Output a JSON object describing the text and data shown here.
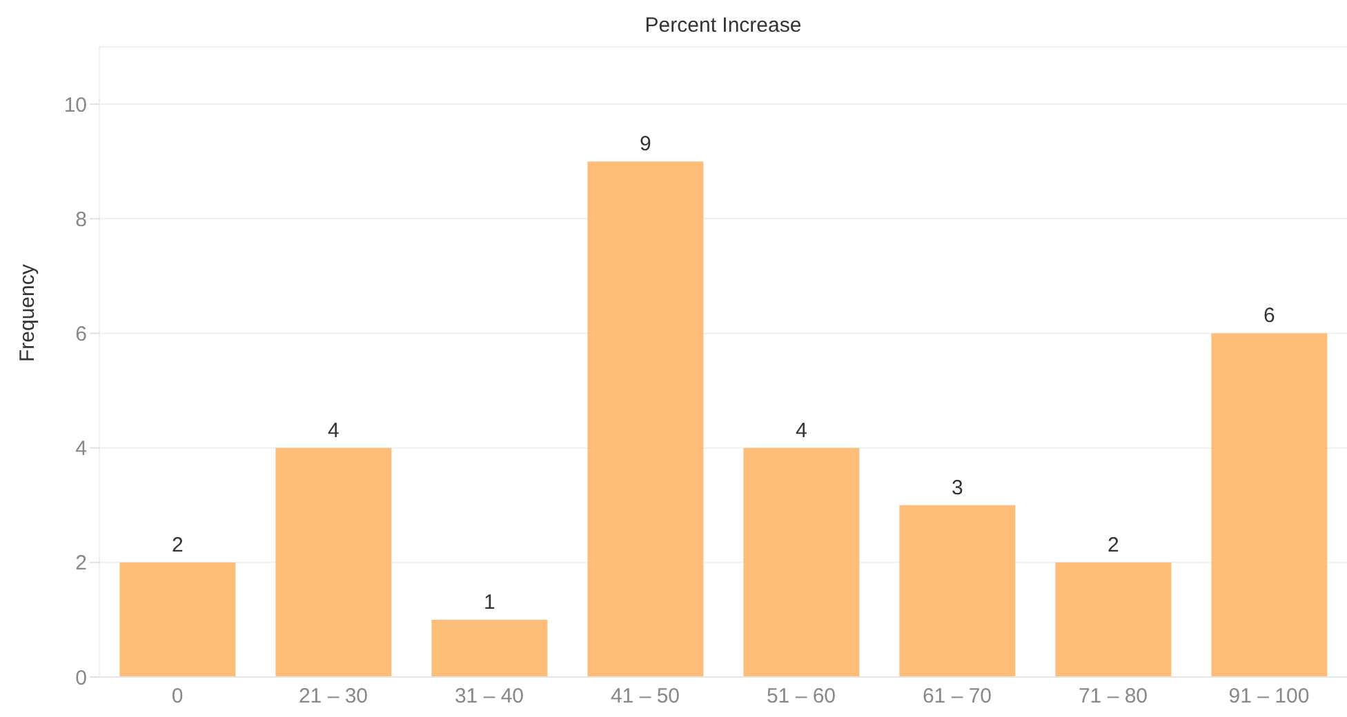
{
  "chart_data": {
    "type": "bar",
    "xlabel": "Percent Increase",
    "ylabel": "Frequency",
    "categories": [
      "0",
      "21 – 30",
      "31 – 40",
      "41 – 50",
      "51 – 60",
      "61 – 70",
      "71 – 80",
      "91 – 100"
    ],
    "values": [
      2,
      4,
      1,
      9,
      4,
      3,
      2,
      6
    ],
    "color": "#ffbd7a",
    "ylim": [
      0,
      11
    ],
    "yticks": [
      0,
      2,
      4,
      6,
      8,
      10
    ],
    "grid": "y",
    "data_labels": true
  }
}
